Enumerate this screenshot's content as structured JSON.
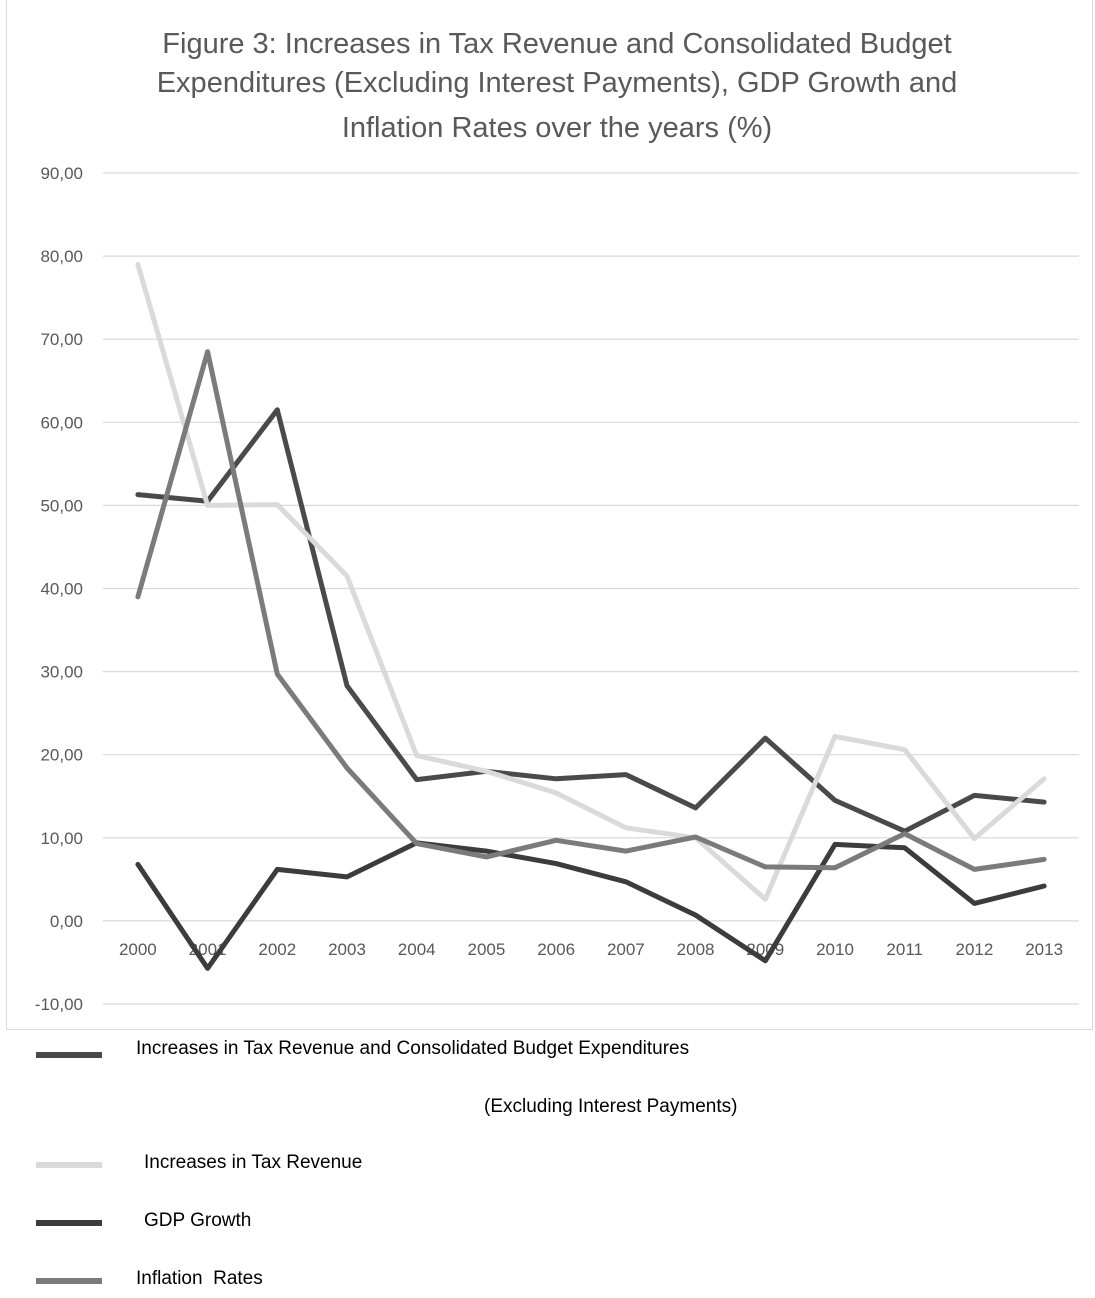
{
  "chart_data": {
    "type": "line",
    "title": "Figure 3: Increases in Tax Revenue and Consolidated Budget Expenditures (Excluding Interest Payments), GDP Growth and Inflation Rates over the years (%)",
    "title_lines": [
      "Figure 3: Increases in Tax Revenue and Consolidated Budget",
      "Expenditures (Excluding Interest Payments), GDP Growth and",
      "Inflation Rates over the years (%)"
    ],
    "categories": [
      "2000",
      "2001",
      "2002",
      "2003",
      "2004",
      "2005",
      "2006",
      "2007",
      "2008",
      "2009",
      "2010",
      "2011",
      "2012",
      "2013"
    ],
    "ylim": [
      -10,
      90
    ],
    "yticks": [
      -10,
      0,
      10,
      20,
      30,
      40,
      50,
      60,
      70,
      80,
      90
    ],
    "ytick_labels": [
      "-10,00",
      "0,00",
      "10,00",
      "20,00",
      "30,00",
      "40,00",
      "50,00",
      "60,00",
      "70,00",
      "80,00",
      "90,00"
    ],
    "grid": true,
    "legend_position": "bottom",
    "series": [
      {
        "name": "Increases in Tax Revenue and Consolidated Budget Expenditures (Excluding Interest Payments)",
        "legend_lines": [
          "Increases in Tax Revenue and Consolidated Budget Expenditures",
          "(Excluding Interest Payments)"
        ],
        "color": "#4a4a4a",
        "values": [
          51.3,
          50.5,
          61.5,
          28.3,
          17.0,
          18.0,
          17.1,
          17.6,
          13.6,
          22.0,
          14.5,
          10.8,
          15.1,
          14.3
        ]
      },
      {
        "name": "Increases in Tax Revenue",
        "legend_lines": [
          "Increases in Tax Revenue"
        ],
        "color": "#dadada",
        "values": [
          79.0,
          50.0,
          50.1,
          41.5,
          19.9,
          18.0,
          15.4,
          11.2,
          10.0,
          2.6,
          22.2,
          20.6,
          9.9,
          17.1
        ]
      },
      {
        "name": "GDP Growth",
        "legend_lines": [
          "GDP Growth"
        ],
        "color": "#3c3c3c",
        "values": [
          6.8,
          -5.7,
          6.2,
          5.3,
          9.4,
          8.4,
          6.9,
          4.7,
          0.7,
          -4.8,
          9.2,
          8.8,
          2.1,
          4.2
        ]
      },
      {
        "name": "Inflation Rates",
        "legend_lines": [
          "Inflation  Rates"
        ],
        "color": "#7b7b7b",
        "values": [
          39.0,
          68.5,
          29.7,
          18.4,
          9.3,
          7.7,
          9.7,
          8.4,
          10.1,
          6.5,
          6.4,
          10.5,
          6.2,
          7.4
        ]
      }
    ]
  }
}
